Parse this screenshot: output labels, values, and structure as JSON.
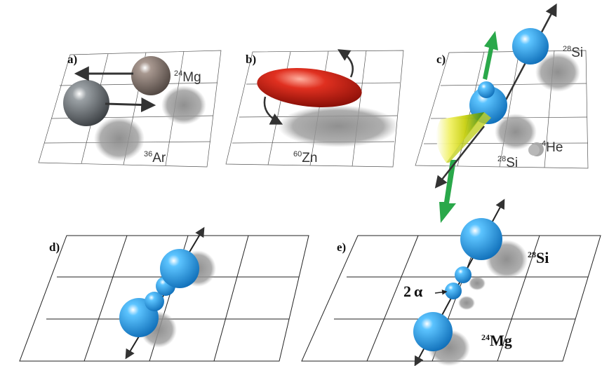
{
  "panels": {
    "a": {
      "label": "a)",
      "nucleus_1": {
        "mass": "24",
        "symbol": "Mg"
      },
      "nucleus_2": {
        "mass": "36",
        "symbol": "Ar"
      }
    },
    "b": {
      "label": "b)",
      "nucleus": {
        "mass": "60",
        "symbol": "Zn"
      }
    },
    "c": {
      "label": "c)",
      "nucleus_1": {
        "mass": "28",
        "symbol": "Si"
      },
      "nucleus_2": {
        "mass": "28",
        "symbol": "Si"
      },
      "nucleus_3": {
        "mass": "4",
        "symbol": "He"
      }
    },
    "d": {
      "label": "d)"
    },
    "e": {
      "label": "e)",
      "nucleus_1": {
        "mass": "28",
        "symbol": "Si"
      },
      "nucleus_2": {
        "mass": "24",
        "symbol": "Mg"
      },
      "alpha_count": "2",
      "alpha_symbol": "α"
    }
  },
  "colors": {
    "sphere_grey": "#6e7478",
    "sphere_brown": "#8a7e78",
    "ellipsoid_red": "#d8281c",
    "sphere_blue": "#2a9fe0",
    "arrow_green": "#2aa84a",
    "cone_yellow": "#d8d800",
    "shadow": "#8c8c8c",
    "arrow_dark": "#333333"
  }
}
